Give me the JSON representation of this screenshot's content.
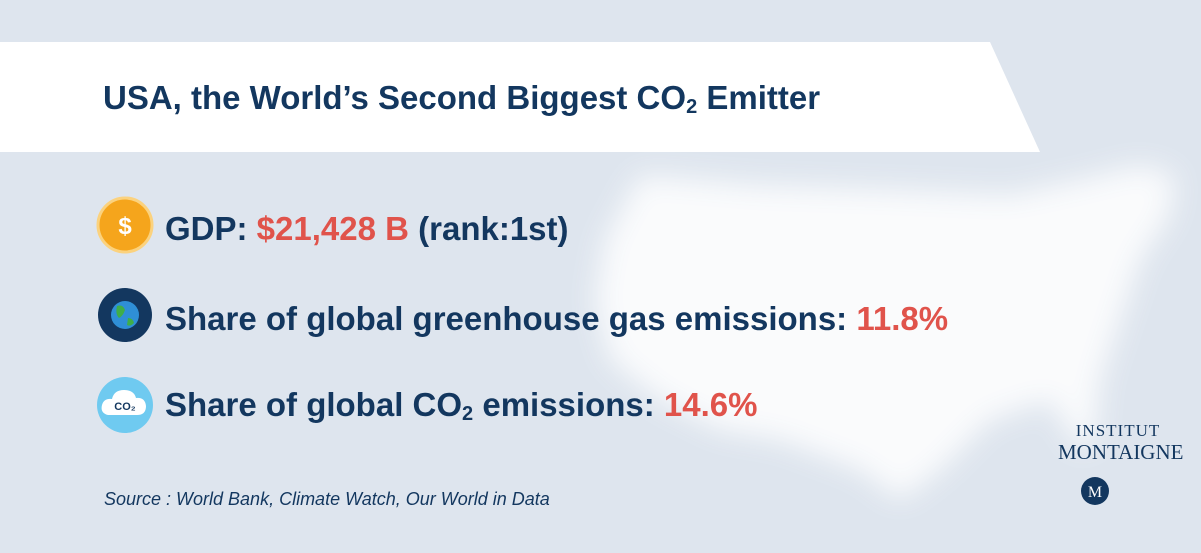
{
  "header": {
    "title": "USA, the World’s Second Biggest CO",
    "title_subscript": "2",
    "title_end": " Emitter"
  },
  "facts": [
    {
      "icon": "$",
      "label": "GDP: ",
      "value": "$21,428 B",
      "note": " (rank:1st)"
    },
    {
      "label": "Share of global greenhouse gas emissions: ",
      "value": "11.8%"
    },
    {
      "icon": "CO₂",
      "label": "Share of global CO",
      "label_subscript": "2",
      "label_end": " emissions: ",
      "value": "14.6%"
    }
  ],
  "source": "Source : World Bank, Climate Watch, Our World in Data",
  "logo": {
    "line1": "INSTITUT",
    "line2": "MONTAIGNE",
    "mark": "M"
  }
}
